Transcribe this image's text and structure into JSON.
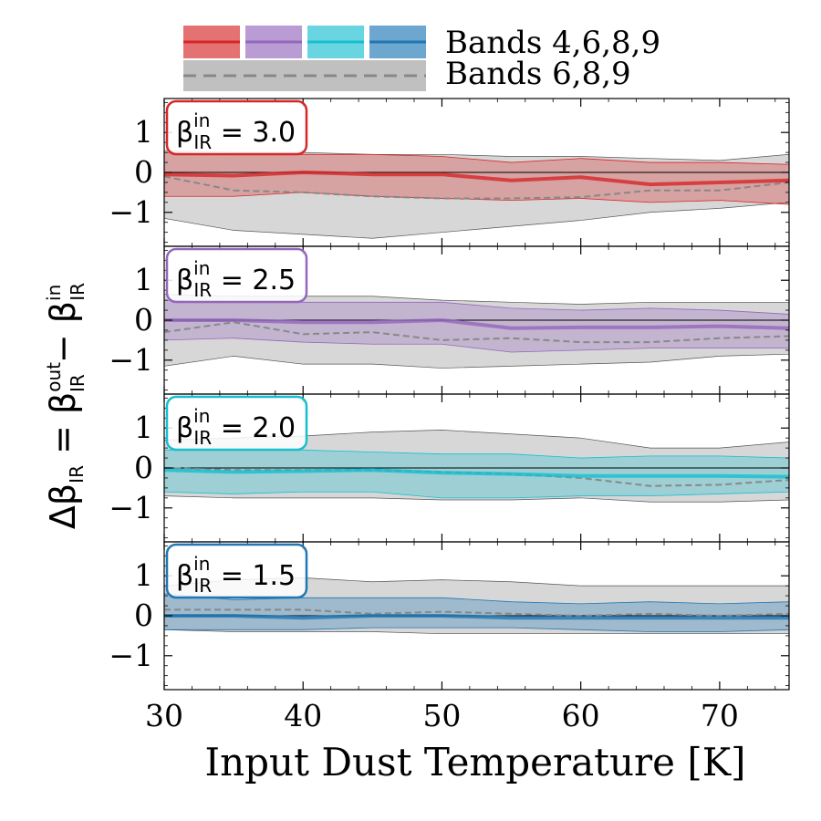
{
  "chart_data": {
    "type": "line",
    "xlabel": "Input Dust Temperature [K]",
    "ylabel": {
      "main": "Δβ",
      "sub1": "IR",
      "eq": " = β",
      "sup2": "out",
      "sub2": "IR",
      "minus": " − β",
      "sup3": "in",
      "sub3": "IR"
    },
    "xlim": [
      30,
      75
    ],
    "ylim": [
      -1.85,
      1.85
    ],
    "xticks": [
      "30",
      "40",
      "50",
      "60",
      "70"
    ],
    "yticks": [
      "1",
      "0",
      "−1"
    ],
    "legend": {
      "placement": "top",
      "entries": [
        {
          "label": "Bands 4,6,8,9",
          "colors": [
            "#d62728",
            "#9467bd",
            "#17becf",
            "#1f77b4"
          ]
        },
        {
          "label": "Bands 6,8,9",
          "colors": [
            "#7f7f7f"
          ],
          "style": "dashed"
        }
      ]
    },
    "x": [
      30,
      35,
      40,
      45,
      50,
      55,
      60,
      65,
      70,
      75
    ],
    "panels": [
      {
        "label": {
          "beta": "β",
          "sup": "in",
          "sub": "IR",
          "value": " = 3.0"
        },
        "color": "#d62728",
        "main": [
          -0.05,
          -0.08,
          0.0,
          -0.05,
          -0.05,
          -0.2,
          -0.12,
          -0.3,
          -0.25,
          -0.2
        ],
        "main_band": [
          [
            -0.6,
            0.5
          ],
          [
            -0.6,
            0.45
          ],
          [
            -0.5,
            0.45
          ],
          [
            -0.6,
            0.45
          ],
          [
            -0.65,
            0.4
          ],
          [
            -0.7,
            0.25
          ],
          [
            -0.65,
            0.35
          ],
          [
            -0.75,
            0.25
          ],
          [
            -0.7,
            0.25
          ],
          [
            -0.8,
            0.2
          ]
        ],
        "alt": [
          -0.1,
          -0.45,
          -0.5,
          -0.6,
          -0.65,
          -0.65,
          -0.62,
          -0.45,
          -0.45,
          -0.25
        ],
        "alt_band": [
          [
            -1.15,
            0.55
          ],
          [
            -1.45,
            0.5
          ],
          [
            -1.55,
            0.5
          ],
          [
            -1.65,
            0.45
          ],
          [
            -1.5,
            0.45
          ],
          [
            -1.35,
            0.4
          ],
          [
            -1.2,
            0.4
          ],
          [
            -1.0,
            0.35
          ],
          [
            -0.9,
            0.3
          ],
          [
            -0.75,
            0.45
          ]
        ]
      },
      {
        "label": {
          "beta": "β",
          "sup": "in",
          "sub": "IR",
          "value": " = 2.5"
        },
        "color": "#9467bd",
        "main": [
          0.0,
          0.0,
          -0.05,
          -0.05,
          0.0,
          -0.2,
          -0.18,
          -0.18,
          -0.15,
          -0.2
        ],
        "main_band": [
          [
            -0.5,
            0.5
          ],
          [
            -0.45,
            0.45
          ],
          [
            -0.55,
            0.45
          ],
          [
            -0.6,
            0.45
          ],
          [
            -0.6,
            0.45
          ],
          [
            -0.8,
            0.3
          ],
          [
            -0.75,
            0.25
          ],
          [
            -0.7,
            0.3
          ],
          [
            -0.7,
            0.25
          ],
          [
            -0.7,
            0.15
          ]
        ],
        "alt": [
          -0.3,
          -0.05,
          -0.35,
          -0.3,
          -0.5,
          -0.45,
          -0.55,
          -0.55,
          -0.45,
          -0.4
        ],
        "alt_band": [
          [
            -1.15,
            0.65
          ],
          [
            -0.9,
            0.6
          ],
          [
            -1.1,
            0.6
          ],
          [
            -1.1,
            0.6
          ],
          [
            -1.2,
            0.5
          ],
          [
            -1.15,
            0.45
          ],
          [
            -1.1,
            0.4
          ],
          [
            -1.05,
            0.45
          ],
          [
            -0.9,
            0.45
          ],
          [
            -0.85,
            0.45
          ]
        ]
      },
      {
        "label": {
          "beta": "β",
          "sup": "in",
          "sub": "IR",
          "value": " = 2.0"
        },
        "color": "#17becf",
        "main": [
          -0.05,
          -0.1,
          -0.08,
          -0.05,
          -0.12,
          -0.15,
          -0.2,
          -0.2,
          -0.2,
          -0.22
        ],
        "main_band": [
          [
            -0.6,
            0.45
          ],
          [
            -0.65,
            0.45
          ],
          [
            -0.6,
            0.45
          ],
          [
            -0.6,
            0.4
          ],
          [
            -0.75,
            0.35
          ],
          [
            -0.75,
            0.35
          ],
          [
            -0.7,
            0.25
          ],
          [
            -0.7,
            0.3
          ],
          [
            -0.65,
            0.3
          ],
          [
            -0.6,
            0.25
          ]
        ],
        "alt": [
          0.0,
          -0.05,
          -0.05,
          -0.05,
          -0.1,
          -0.15,
          -0.25,
          -0.45,
          -0.42,
          -0.3
        ],
        "alt_band": [
          [
            -0.7,
            0.7
          ],
          [
            -0.75,
            0.75
          ],
          [
            -0.75,
            0.8
          ],
          [
            -0.75,
            0.9
          ],
          [
            -0.8,
            0.95
          ],
          [
            -0.8,
            0.85
          ],
          [
            -0.75,
            0.75
          ],
          [
            -0.85,
            0.5
          ],
          [
            -0.85,
            0.5
          ],
          [
            -0.8,
            0.65
          ]
        ]
      },
      {
        "label": {
          "beta": "β",
          "sup": "in",
          "sub": "IR",
          "value": " = 1.5"
        },
        "color": "#1f77b4",
        "main": [
          0.0,
          0.0,
          -0.05,
          0.0,
          0.0,
          -0.05,
          -0.05,
          -0.05,
          -0.05,
          -0.05
        ],
        "main_band": [
          [
            -0.35,
            0.55
          ],
          [
            -0.35,
            0.4
          ],
          [
            -0.35,
            0.45
          ],
          [
            -0.3,
            0.45
          ],
          [
            -0.3,
            0.45
          ],
          [
            -0.3,
            0.35
          ],
          [
            -0.35,
            0.3
          ],
          [
            -0.4,
            0.35
          ],
          [
            -0.4,
            0.3
          ],
          [
            -0.35,
            0.35
          ]
        ],
        "alt": [
          0.15,
          0.15,
          0.15,
          0.05,
          0.1,
          0.05,
          0.0,
          0.05,
          0.0,
          0.05
        ],
        "alt_band": [
          [
            -0.35,
            0.75
          ],
          [
            -0.4,
            0.9
          ],
          [
            -0.4,
            0.95
          ],
          [
            -0.4,
            0.85
          ],
          [
            -0.45,
            0.9
          ],
          [
            -0.45,
            0.85
          ],
          [
            -0.45,
            0.75
          ],
          [
            -0.45,
            0.75
          ],
          [
            -0.45,
            0.75
          ],
          [
            -0.45,
            0.75
          ]
        ]
      }
    ]
  }
}
